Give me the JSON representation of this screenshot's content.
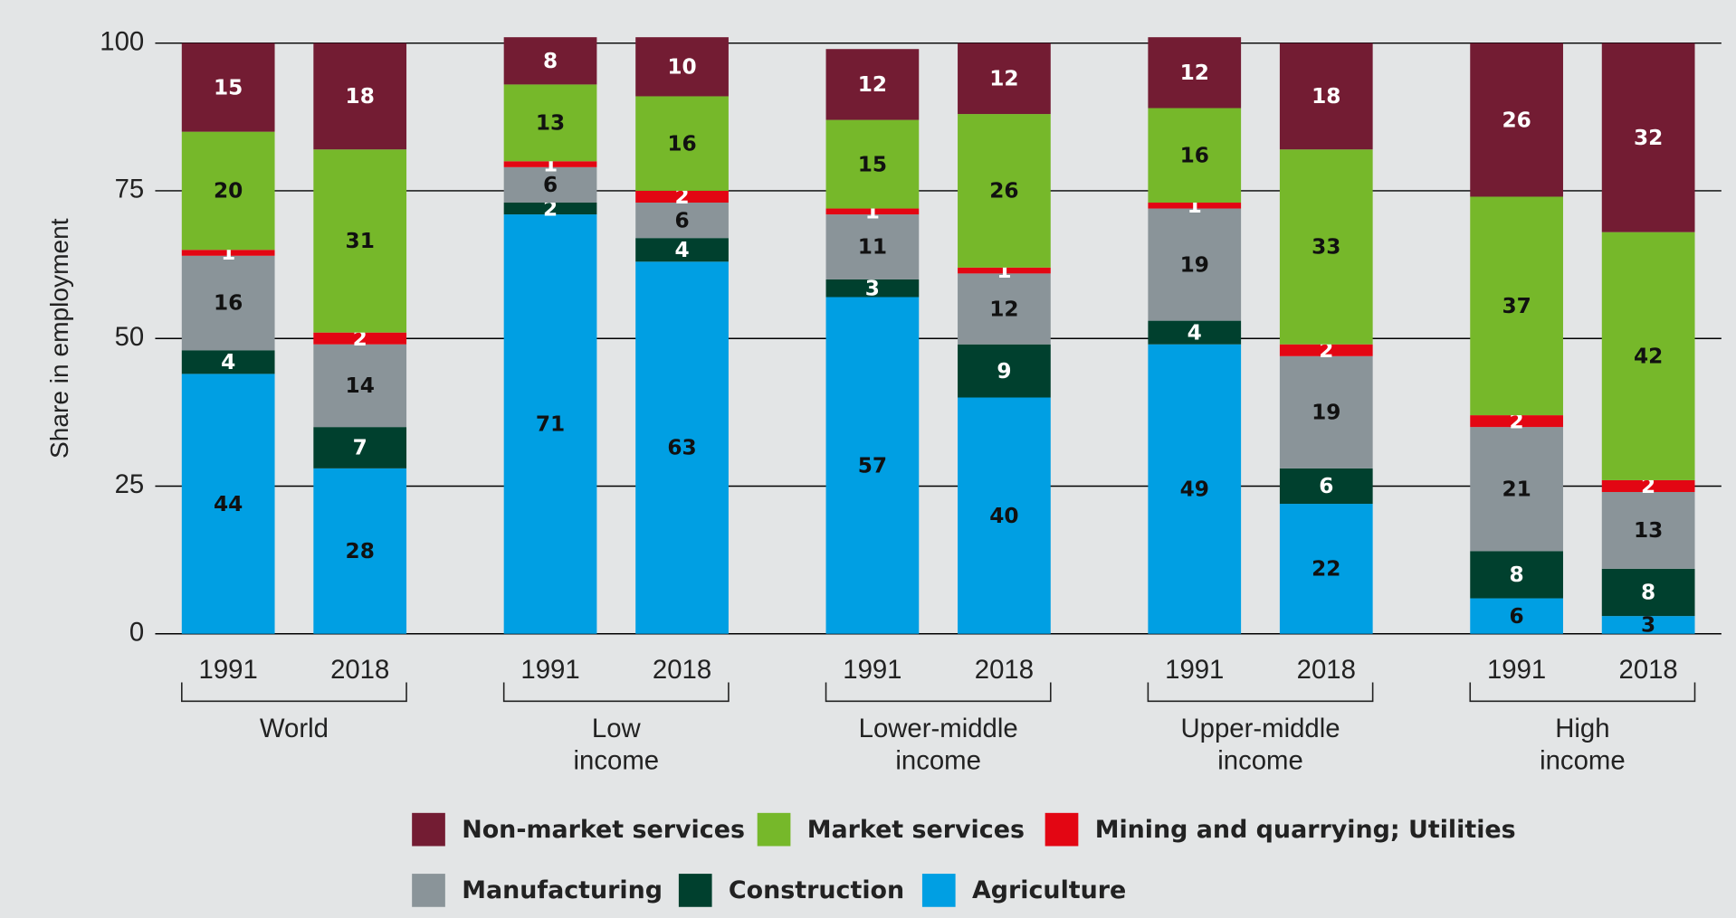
{
  "chart_data": {
    "type": "stacked_bar",
    "y_axis_label": "Share in employment",
    "categories": [
      "1991",
      "2018",
      "1991",
      "2018",
      "1991",
      "2018",
      "1991",
      "2018",
      "1991",
      "2018"
    ],
    "groups": [
      [
        "World"
      ],
      [
        "Low",
        "income"
      ],
      [
        "Lower-middle",
        "income"
      ],
      [
        "Upper-middle",
        "income"
      ],
      [
        "High",
        "income"
      ]
    ],
    "series": [
      {
        "name": "Agriculture",
        "color": "#009fe3",
        "values": [
          44,
          28,
          71,
          63,
          57,
          40,
          49,
          22,
          6,
          3
        ]
      },
      {
        "name": "Construction",
        "color": "#00402e",
        "values": [
          4,
          7,
          2,
          4,
          3,
          9,
          4,
          6,
          8,
          8
        ]
      },
      {
        "name": "Manufacturing",
        "color": "#8a9499",
        "values": [
          16,
          14,
          6,
          6,
          11,
          12,
          19,
          19,
          21,
          13
        ]
      },
      {
        "name": "Mining and quarrying; Utilities",
        "color": "#e30613",
        "values": [
          1,
          2,
          1,
          2,
          1,
          1,
          1,
          2,
          2,
          2
        ]
      },
      {
        "name": "Market services",
        "color": "#76b82a",
        "values": [
          20,
          31,
          13,
          16,
          15,
          26,
          16,
          33,
          37,
          42
        ]
      },
      {
        "name": "Non-market services",
        "color": "#731c33",
        "values": [
          15,
          18,
          8,
          10,
          12,
          12,
          12,
          18,
          26,
          32
        ]
      }
    ],
    "ylim": [
      0,
      100
    ],
    "yticks": [
      0,
      25,
      50,
      75,
      100
    ],
    "grid": true
  }
}
